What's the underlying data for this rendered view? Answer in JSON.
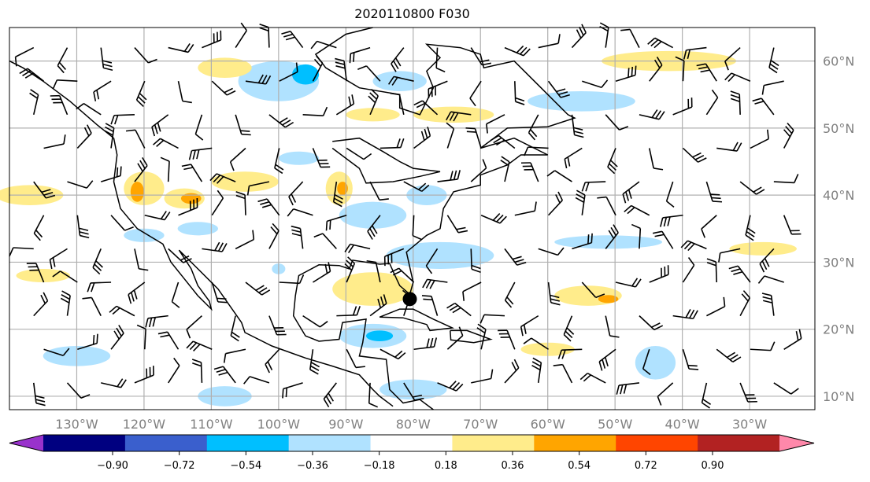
{
  "title": "2020110800 F030",
  "map": {
    "lon_range": [
      -140,
      -20.3
    ],
    "lat_range": [
      8,
      65
    ],
    "longitude_labels": [
      "130°W",
      "120°W",
      "110°W",
      "100°W",
      "90°W",
      "80°W",
      "70°W",
      "60°W",
      "50°W",
      "40°W",
      "30°W"
    ],
    "longitude_values": [
      -130,
      -120,
      -110,
      -100,
      -90,
      -80,
      -70,
      -60,
      -50,
      -40,
      -30
    ],
    "latitude_labels": [
      "60°N",
      "50°N",
      "40°N",
      "30°N",
      "20°N",
      "10°N"
    ],
    "latitude_values": [
      60,
      50,
      40,
      30,
      20,
      10
    ],
    "marker": {
      "lon": -80.5,
      "lat": 24.5
    }
  },
  "colorbar": {
    "tick_labels": [
      "−0.90",
      "−0.72",
      "−0.54",
      "−0.36",
      "−0.18",
      "0.18",
      "0.36",
      "0.54",
      "0.72",
      "0.90"
    ],
    "colors": [
      "#9932cc",
      "#000080",
      "#3a5fcd",
      "#00bfff",
      "#b0e2ff",
      "#ffffff",
      "#ffec8b",
      "#ffa500",
      "#ff4500",
      "#b22222",
      "#ff88aa"
    ]
  }
}
